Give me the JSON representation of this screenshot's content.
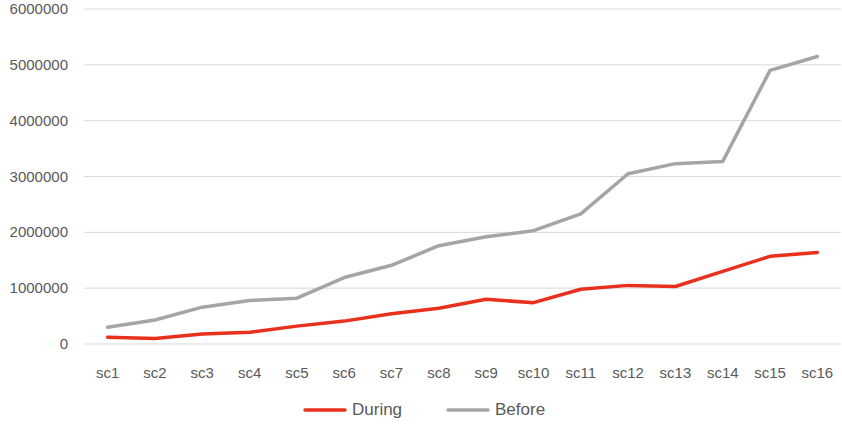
{
  "chart_data": {
    "type": "line",
    "categories": [
      "sc1",
      "sc2",
      "sc3",
      "sc4",
      "sc5",
      "sc6",
      "sc7",
      "sc8",
      "sc9",
      "sc10",
      "sc11",
      "sc12",
      "sc13",
      "sc14",
      "sc15",
      "sc16"
    ],
    "series": [
      {
        "name": "During",
        "color": "#e8301c",
        "values": [
          120000,
          100000,
          180000,
          210000,
          320000,
          410000,
          540000,
          640000,
          800000,
          740000,
          980000,
          1050000,
          1030000,
          1300000,
          1570000,
          1640000
        ]
      },
      {
        "name": "Before",
        "color": "#a5a5a5",
        "values": [
          300000,
          430000,
          660000,
          780000,
          820000,
          1190000,
          1410000,
          1760000,
          1920000,
          2030000,
          2330000,
          3050000,
          3230000,
          3270000,
          4900000,
          5150000
        ]
      }
    ],
    "ylim": [
      0,
      6000000
    ],
    "yticks": [
      0,
      1000000,
      2000000,
      3000000,
      4000000,
      5000000,
      6000000
    ],
    "grid": true,
    "legend": "bottom"
  }
}
